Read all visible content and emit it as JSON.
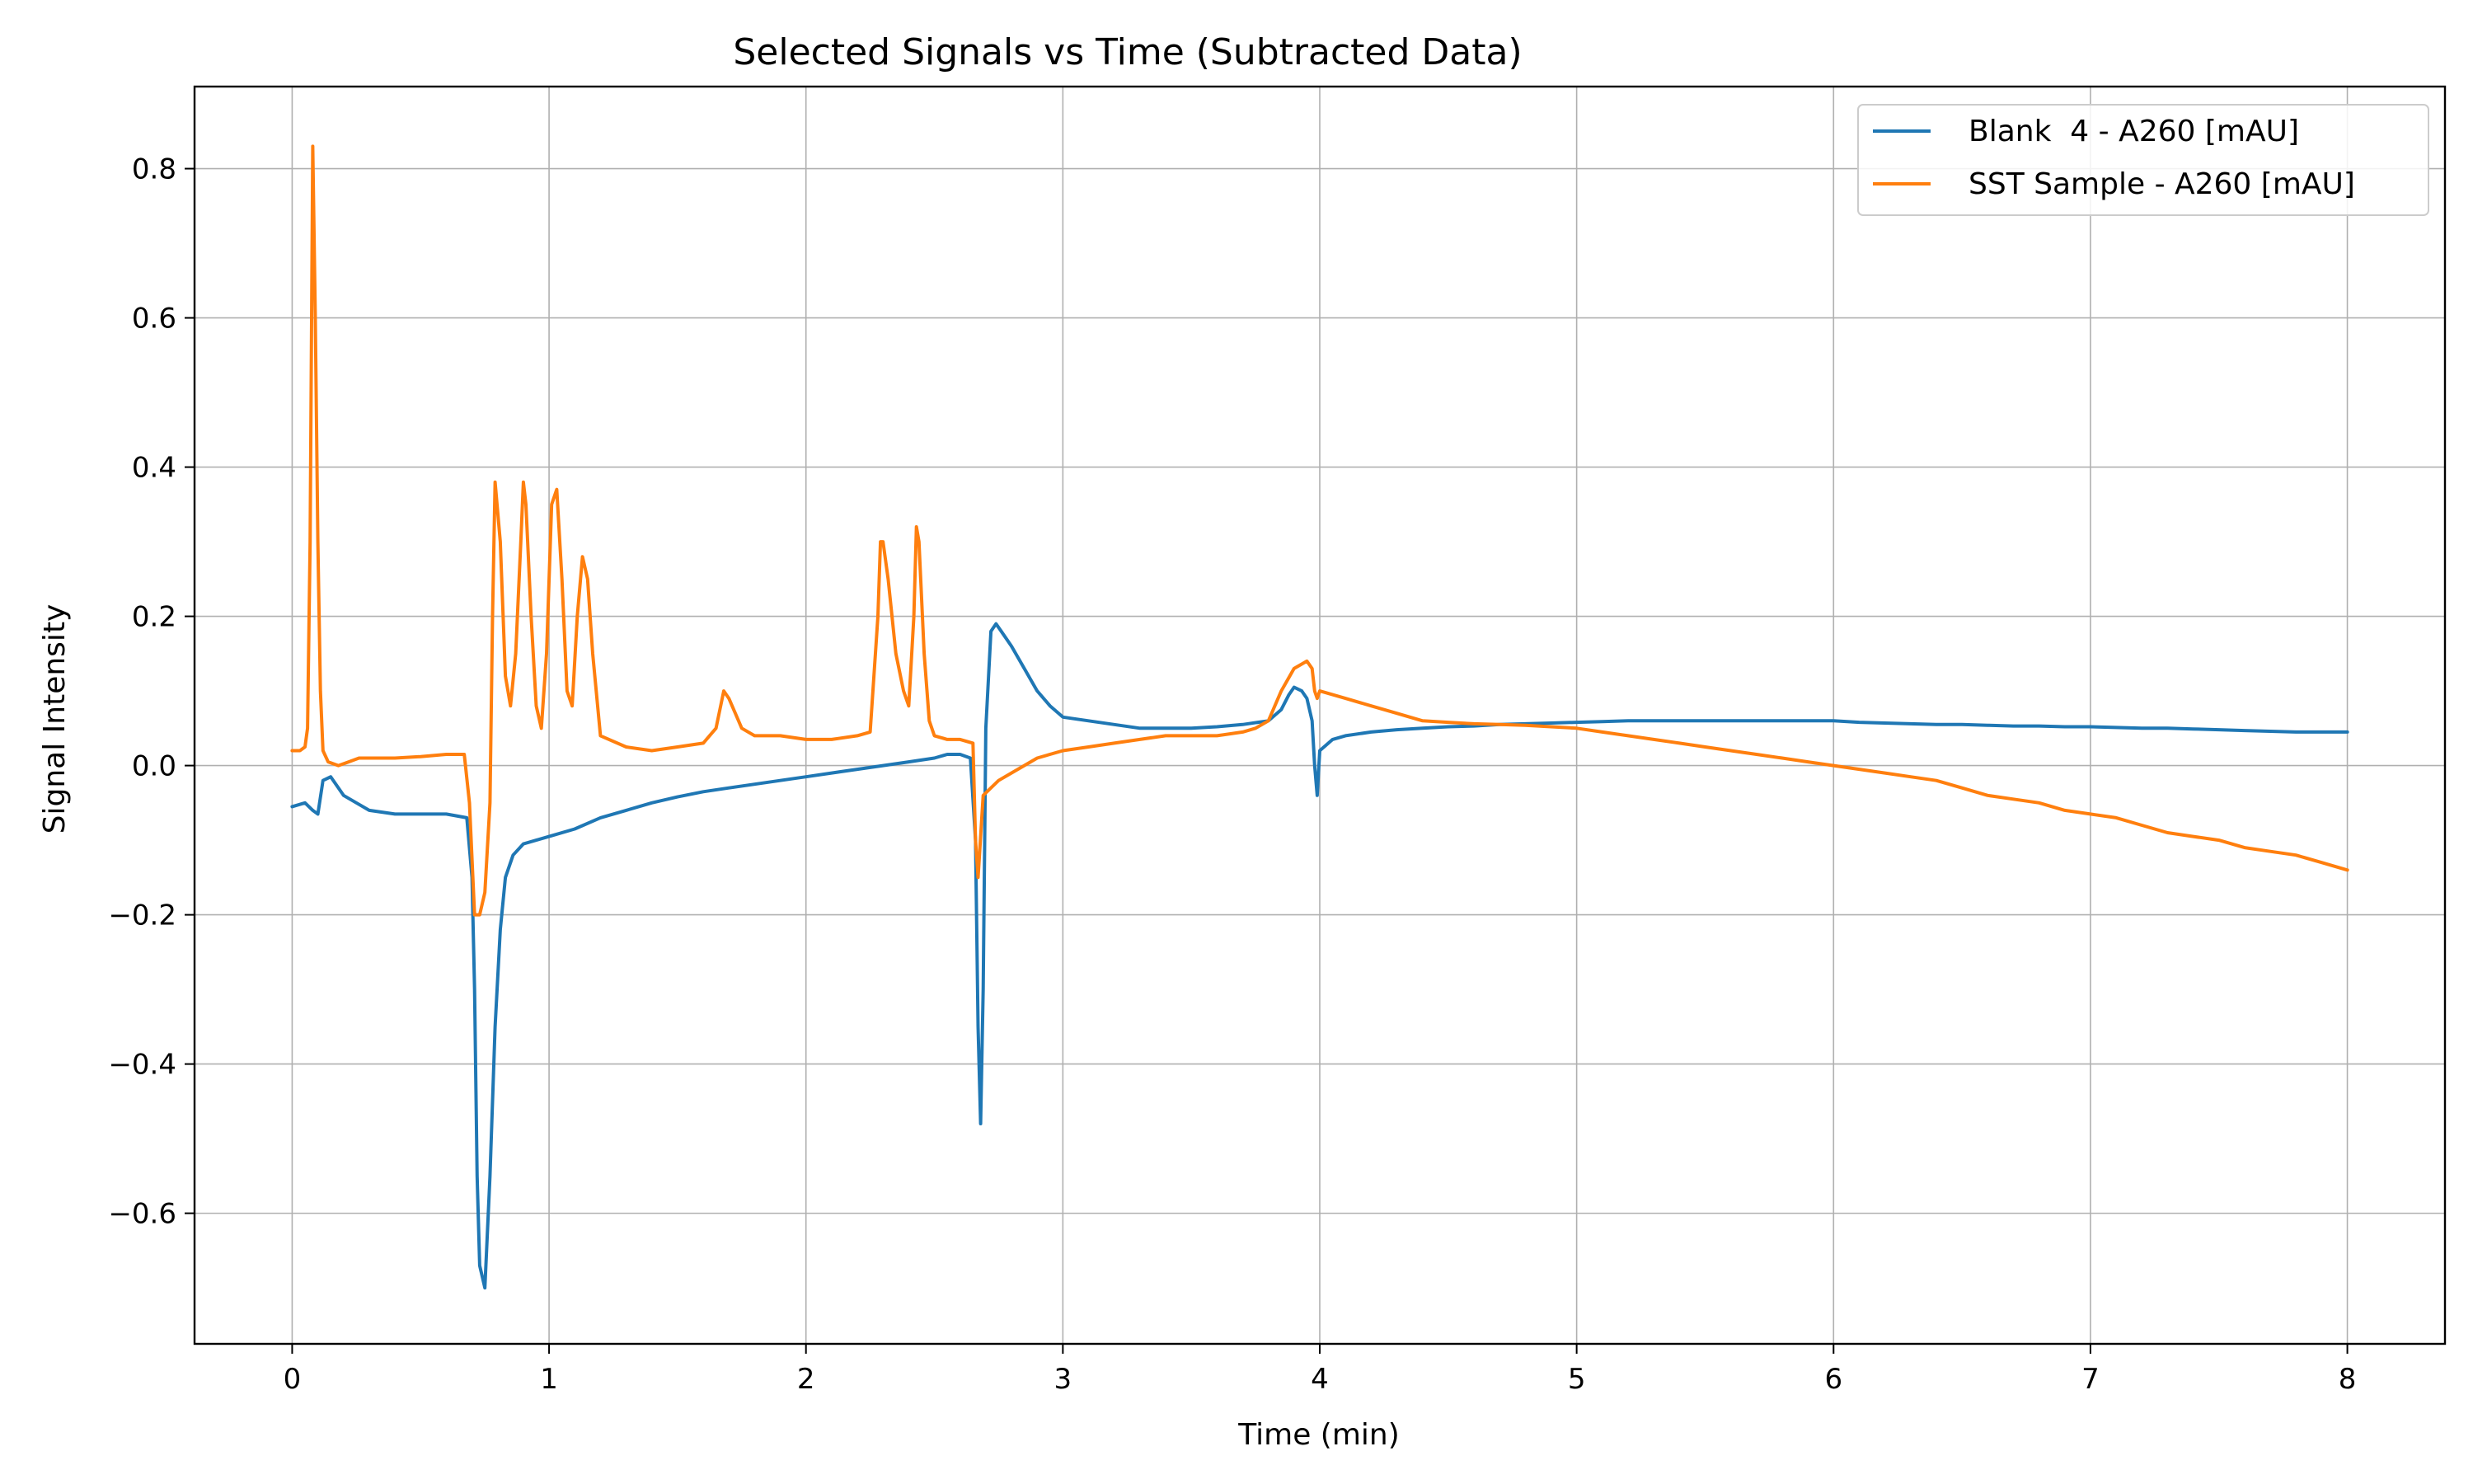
{
  "chart_data": {
    "type": "line",
    "title": "Selected Signals vs Time (Subtracted Data)",
    "xlabel": "Time (min)",
    "ylabel": "Signal Intensity",
    "xlim": [
      -0.38,
      8.38
    ],
    "ylim": [
      -0.775,
      0.91
    ],
    "xticks": [
      0,
      1,
      2,
      3,
      4,
      5,
      6,
      7,
      8
    ],
    "xtick_labels": [
      "0",
      "1",
      "2",
      "3",
      "4",
      "5",
      "6",
      "7",
      "8"
    ],
    "yticks": [
      -0.6,
      -0.4,
      -0.2,
      0.0,
      0.2,
      0.4,
      0.6,
      0.8
    ],
    "ytick_labels": [
      "−0.6",
      "−0.4",
      "−0.2",
      "0.0",
      "0.2",
      "0.4",
      "0.6",
      "0.8"
    ],
    "grid": true,
    "legend_position": "top-right",
    "series": [
      {
        "name": "Blank  4 - A260 [mAU]",
        "color": "#1f77b4",
        "x": [
          0,
          0.05,
          0.08,
          0.1,
          0.12,
          0.15,
          0.2,
          0.25,
          0.3,
          0.4,
          0.5,
          0.6,
          0.68,
          0.7,
          0.71,
          0.72,
          0.73,
          0.75,
          0.77,
          0.79,
          0.81,
          0.83,
          0.86,
          0.9,
          0.95,
          1.0,
          1.1,
          1.2,
          1.3,
          1.4,
          1.5,
          1.6,
          1.7,
          1.8,
          1.9,
          2.0,
          2.1,
          2.2,
          2.3,
          2.4,
          2.5,
          2.55,
          2.6,
          2.64,
          2.66,
          2.67,
          2.68,
          2.69,
          2.7,
          2.72,
          2.74,
          2.76,
          2.8,
          2.85,
          2.9,
          2.95,
          3.0,
          3.1,
          3.2,
          3.3,
          3.4,
          3.5,
          3.6,
          3.7,
          3.8,
          3.85,
          3.88,
          3.9,
          3.93,
          3.95,
          3.97,
          3.98,
          3.99,
          4.0,
          4.05,
          4.1,
          4.2,
          4.3,
          4.4,
          4.5,
          4.6,
          4.7,
          4.8,
          4.9,
          5.0,
          5.1,
          5.2,
          5.3,
          5.4,
          5.5,
          5.6,
          5.7,
          5.8,
          5.9,
          6.0,
          6.1,
          6.2,
          6.3,
          6.4,
          6.5,
          6.6,
          6.7,
          6.8,
          6.9,
          7.0,
          7.1,
          7.2,
          7.3,
          7.4,
          7.5,
          7.6,
          7.7,
          7.8,
          7.9,
          8.0
        ],
        "y": [
          -0.055,
          -0.05,
          -0.06,
          -0.065,
          -0.02,
          -0.015,
          -0.04,
          -0.05,
          -0.06,
          -0.065,
          -0.065,
          -0.065,
          -0.07,
          -0.15,
          -0.3,
          -0.55,
          -0.67,
          -0.7,
          -0.55,
          -0.35,
          -0.22,
          -0.15,
          -0.12,
          -0.105,
          -0.1,
          -0.095,
          -0.085,
          -0.07,
          -0.06,
          -0.05,
          -0.042,
          -0.035,
          -0.03,
          -0.025,
          -0.02,
          -0.015,
          -0.01,
          -0.005,
          0.0,
          0.005,
          0.01,
          0.015,
          0.015,
          0.01,
          -0.1,
          -0.35,
          -0.48,
          -0.3,
          0.05,
          0.18,
          0.19,
          0.18,
          0.16,
          0.13,
          0.1,
          0.08,
          0.065,
          0.06,
          0.055,
          0.05,
          0.05,
          0.05,
          0.052,
          0.055,
          0.06,
          0.075,
          0.095,
          0.105,
          0.1,
          0.09,
          0.06,
          0.0,
          -0.04,
          0.02,
          0.035,
          0.04,
          0.045,
          0.048,
          0.05,
          0.052,
          0.053,
          0.055,
          0.056,
          0.057,
          0.058,
          0.059,
          0.06,
          0.06,
          0.06,
          0.06,
          0.06,
          0.06,
          0.06,
          0.06,
          0.06,
          0.058,
          0.057,
          0.056,
          0.055,
          0.055,
          0.054,
          0.053,
          0.053,
          0.052,
          0.052,
          0.051,
          0.05,
          0.05,
          0.049,
          0.048,
          0.047,
          0.046,
          0.045,
          0.045,
          0.045
        ]
      },
      {
        "name": "SST Sample - A260 [mAU]",
        "color": "#ff7f0e",
        "x": [
          0,
          0.03,
          0.05,
          0.06,
          0.07,
          0.08,
          0.09,
          0.1,
          0.11,
          0.12,
          0.14,
          0.18,
          0.22,
          0.26,
          0.3,
          0.4,
          0.5,
          0.6,
          0.67,
          0.69,
          0.71,
          0.73,
          0.75,
          0.77,
          0.78,
          0.79,
          0.81,
          0.83,
          0.85,
          0.87,
          0.89,
          0.9,
          0.91,
          0.93,
          0.95,
          0.97,
          0.99,
          1.01,
          1.03,
          1.05,
          1.07,
          1.09,
          1.11,
          1.13,
          1.15,
          1.17,
          1.2,
          1.3,
          1.4,
          1.5,
          1.6,
          1.65,
          1.68,
          1.7,
          1.75,
          1.8,
          1.9,
          2.0,
          2.1,
          2.2,
          2.25,
          2.28,
          2.29,
          2.3,
          2.32,
          2.35,
          2.38,
          2.4,
          2.42,
          2.43,
          2.44,
          2.46,
          2.48,
          2.5,
          2.55,
          2.6,
          2.65,
          2.66,
          2.67,
          2.69,
          2.72,
          2.75,
          2.8,
          2.9,
          3.0,
          3.1,
          3.2,
          3.3,
          3.4,
          3.5,
          3.6,
          3.7,
          3.75,
          3.8,
          3.85,
          3.9,
          3.95,
          3.97,
          3.98,
          3.99,
          4.0,
          4.05,
          4.1,
          4.2,
          4.3,
          4.4,
          4.5,
          4.6,
          4.7,
          4.8,
          4.9,
          5.0,
          5.1,
          5.2,
          5.3,
          5.4,
          5.5,
          5.6,
          5.7,
          5.8,
          5.9,
          6.0,
          6.1,
          6.2,
          6.3,
          6.4,
          6.5,
          6.6,
          6.7,
          6.8,
          6.9,
          7.0,
          7.1,
          7.2,
          7.3,
          7.4,
          7.5,
          7.6,
          7.7,
          7.8,
          7.9,
          8.0
        ],
        "y": [
          0.02,
          0.02,
          0.025,
          0.05,
          0.3,
          0.83,
          0.6,
          0.3,
          0.1,
          0.02,
          0.005,
          0.0,
          0.005,
          0.01,
          0.01,
          0.01,
          0.012,
          0.015,
          0.015,
          -0.05,
          -0.2,
          -0.2,
          -0.17,
          -0.05,
          0.2,
          0.38,
          0.3,
          0.12,
          0.08,
          0.15,
          0.3,
          0.38,
          0.35,
          0.2,
          0.08,
          0.05,
          0.15,
          0.35,
          0.37,
          0.25,
          0.1,
          0.08,
          0.2,
          0.28,
          0.25,
          0.15,
          0.04,
          0.025,
          0.02,
          0.025,
          0.03,
          0.05,
          0.1,
          0.09,
          0.05,
          0.04,
          0.04,
          0.035,
          0.035,
          0.04,
          0.045,
          0.2,
          0.3,
          0.3,
          0.25,
          0.15,
          0.1,
          0.08,
          0.2,
          0.32,
          0.3,
          0.15,
          0.06,
          0.04,
          0.035,
          0.035,
          0.03,
          -0.1,
          -0.15,
          -0.04,
          -0.03,
          -0.02,
          -0.01,
          0.01,
          0.02,
          0.025,
          0.03,
          0.035,
          0.04,
          0.04,
          0.04,
          0.045,
          0.05,
          0.06,
          0.1,
          0.13,
          0.14,
          0.13,
          0.1,
          0.09,
          0.1,
          0.095,
          0.09,
          0.08,
          0.07,
          0.06,
          0.058,
          0.056,
          0.055,
          0.054,
          0.052,
          0.05,
          0.045,
          0.04,
          0.035,
          0.03,
          0.025,
          0.02,
          0.015,
          0.01,
          0.005,
          0.0,
          -0.005,
          -0.01,
          -0.015,
          -0.02,
          -0.03,
          -0.04,
          -0.045,
          -0.05,
          -0.06,
          -0.065,
          -0.07,
          -0.08,
          -0.09,
          -0.095,
          -0.1,
          -0.11,
          -0.115,
          -0.12,
          -0.13,
          -0.14
        ]
      }
    ]
  }
}
